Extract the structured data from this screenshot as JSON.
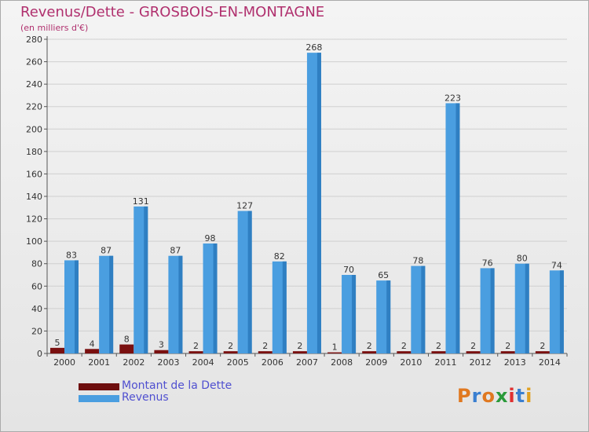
{
  "chart_data": {
    "type": "bar",
    "title": "Revenus/Dette - GROSBOIS-EN-MONTAGNE",
    "subtitle": "(en milliers d'€)",
    "categories": [
      "2000",
      "2001",
      "2002",
      "2003",
      "2004",
      "2005",
      "2006",
      "2007",
      "2008",
      "2009",
      "2010",
      "2011",
      "2012",
      "2013",
      "2014"
    ],
    "series": [
      {
        "name": "Montant de la Dette",
        "color": "#7a1010",
        "values": [
          5,
          4,
          8,
          3,
          2,
          2,
          2,
          2,
          1,
          2,
          2,
          2,
          2,
          2,
          2
        ]
      },
      {
        "name": "Revenus",
        "color": "#4a9ee0",
        "values": [
          83,
          87,
          131,
          87,
          98,
          127,
          82,
          268,
          70,
          65,
          78,
          223,
          76,
          80,
          74
        ]
      }
    ],
    "yticks": [
      "0",
      "20",
      "40",
      "60",
      "80",
      "100",
      "120",
      "140",
      "160",
      "180",
      "200",
      "220",
      "240",
      "260",
      "280"
    ],
    "ylim": [
      0,
      280
    ],
    "grid": true,
    "legend_position": "bottom-left"
  },
  "logo": {
    "text": "Proxiti"
  }
}
